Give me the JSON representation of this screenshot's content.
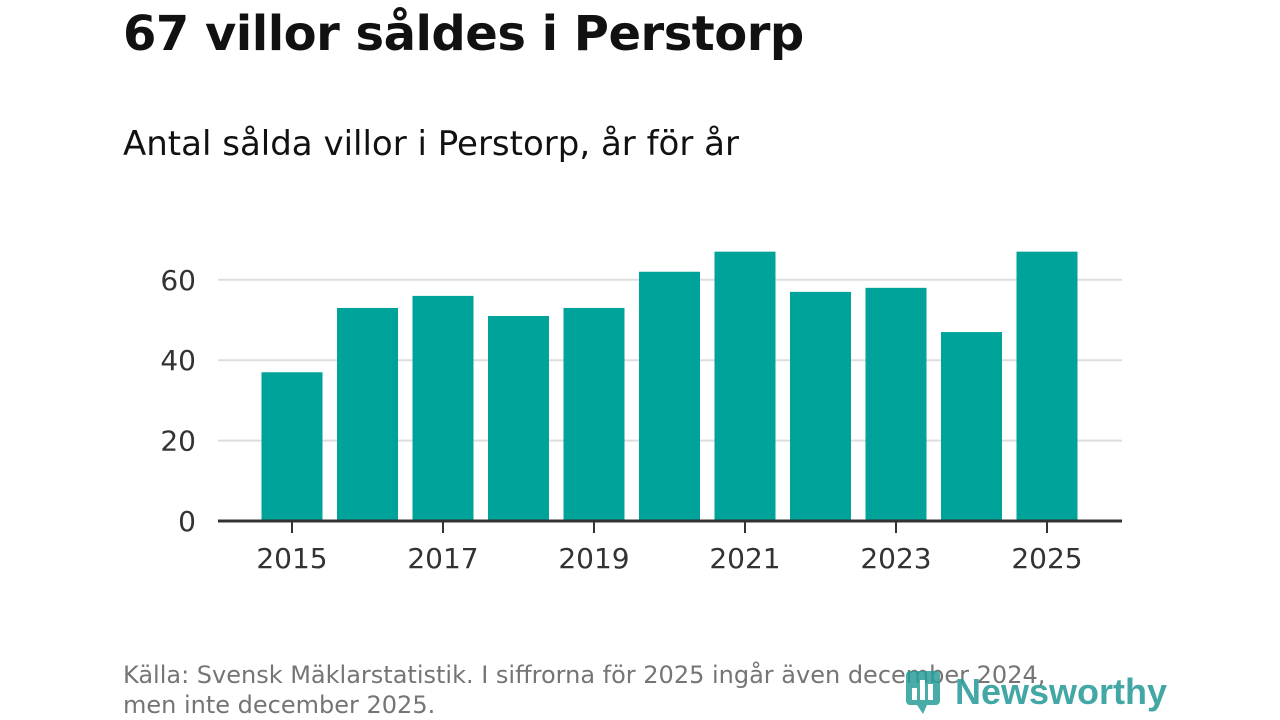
{
  "header": {
    "title": "67 villor såldes i Perstorp",
    "subtitle": "Antal sålda villor i Perstorp, år för år"
  },
  "chart_data": {
    "type": "bar",
    "title": "67 villor såldes i Perstorp",
    "subtitle": "Antal sålda villor i Perstorp, år för år",
    "categories": [
      "2015",
      "2016",
      "2017",
      "2018",
      "2019",
      "2020",
      "2021",
      "2022",
      "2023",
      "2024",
      "2025"
    ],
    "values": [
      37,
      53,
      56,
      51,
      53,
      62,
      67,
      57,
      58,
      47,
      67
    ],
    "x_tick_labels": [
      "2015",
      "2017",
      "2019",
      "2021",
      "2023",
      "2025"
    ],
    "y_ticks": [
      0,
      20,
      40,
      60
    ],
    "ylim": [
      0,
      70
    ],
    "xlabel": "",
    "ylabel": "",
    "grid": true,
    "legend": "none",
    "bar_color": "#00a39a"
  },
  "footer": {
    "source_line1": "Källa: Svensk Mäklarstatistik. I siffrorna för 2025 ingår även december 2024,",
    "source_line2": "men inte december 2025.",
    "brand_name": "Newsworthy",
    "brand_icon": "newsworthy-logo-icon",
    "brand_color": "#2a9d99"
  }
}
